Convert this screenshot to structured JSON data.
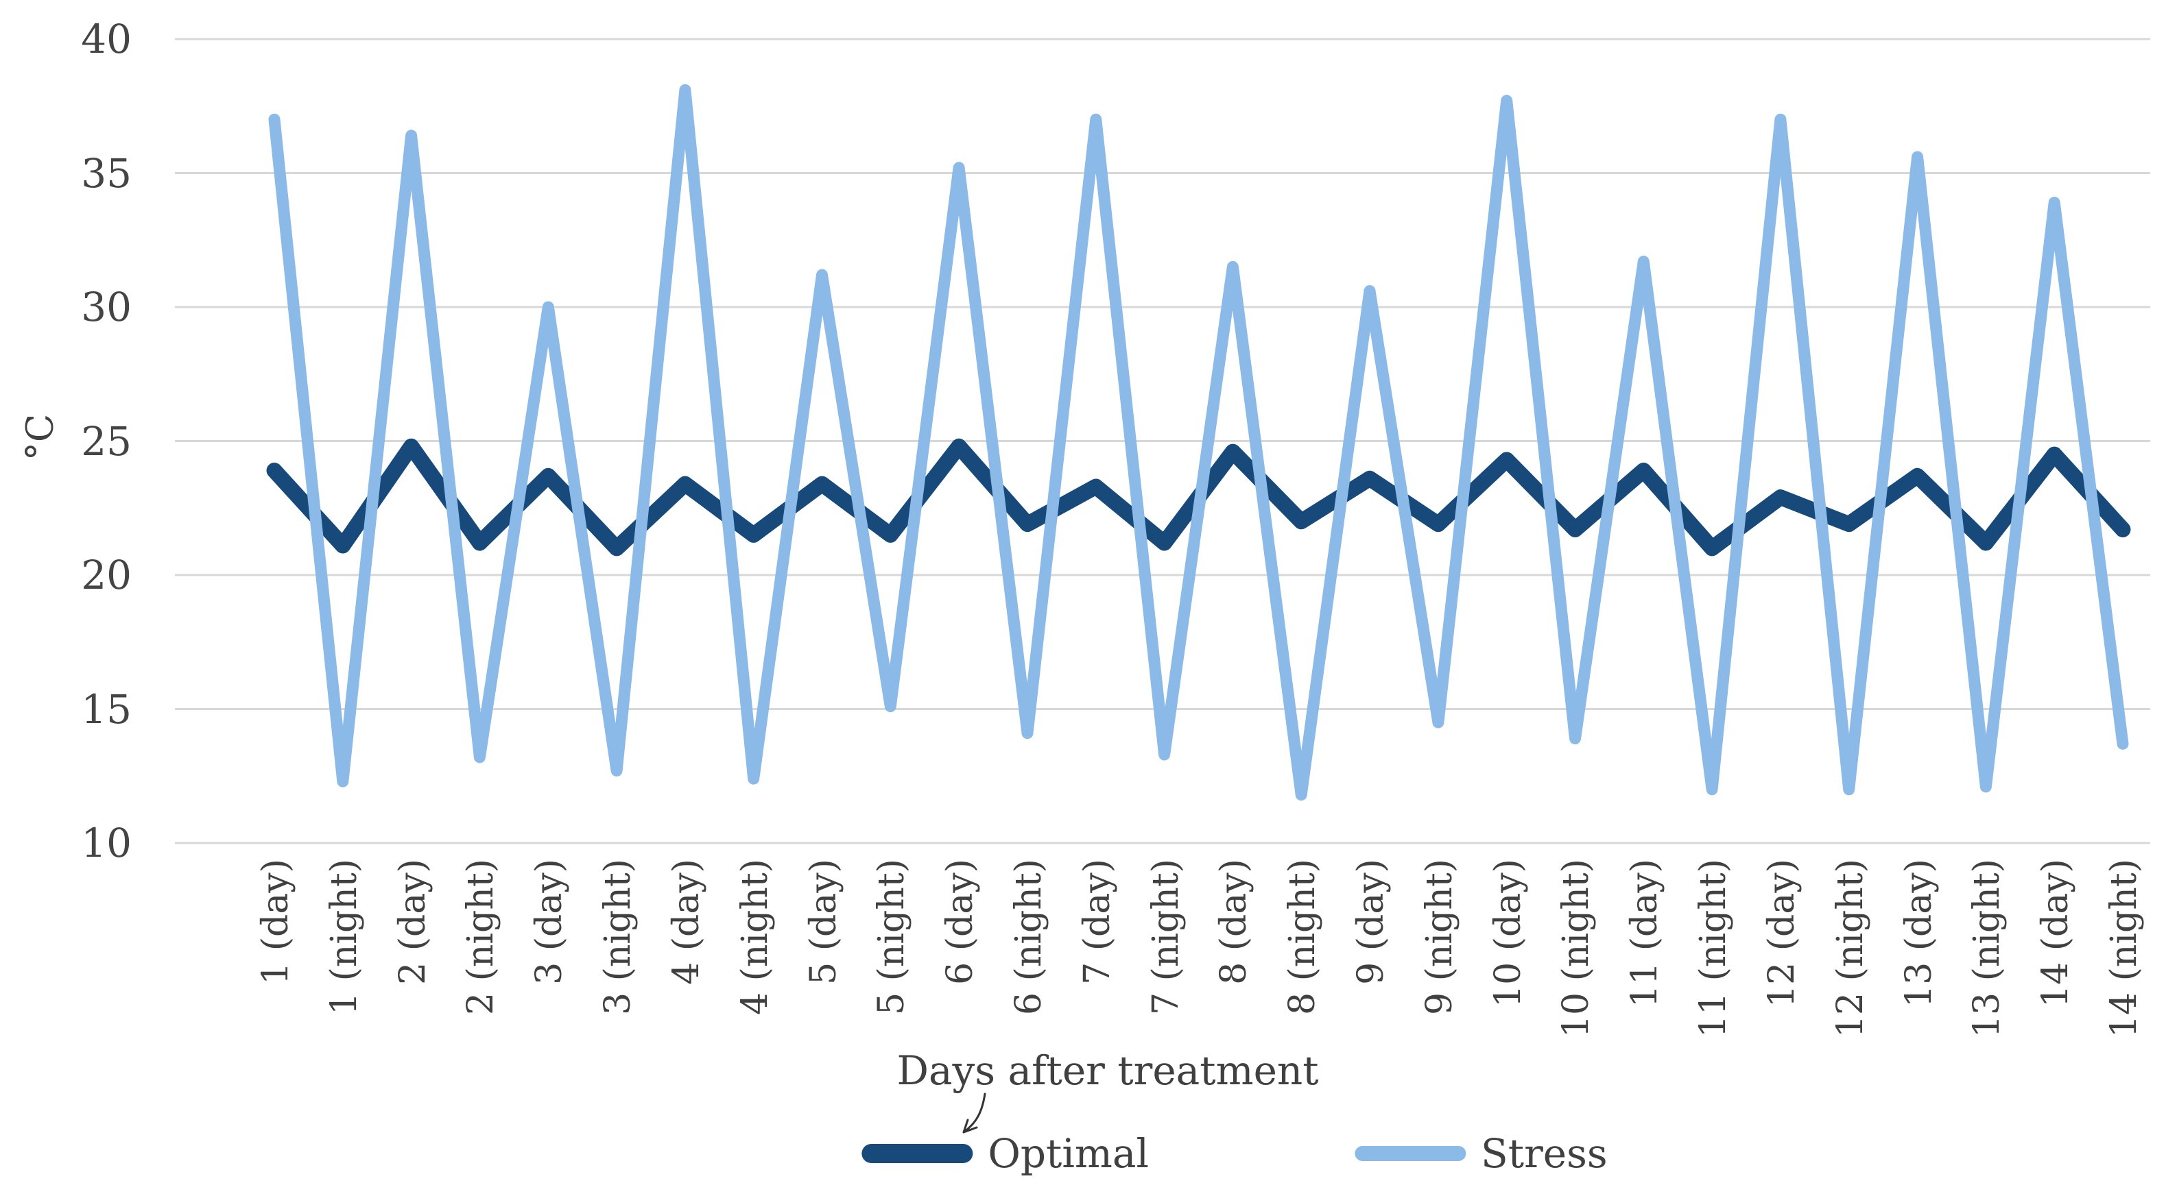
{
  "chart_data": {
    "type": "line",
    "title": "",
    "xlabel": "Days after treatment",
    "ylabel": "°C",
    "ylim": [
      10,
      40
    ],
    "yticks": [
      40,
      35,
      30,
      25,
      20,
      15,
      10
    ],
    "grid": true,
    "gridline_color": "#d8d8d8",
    "legend_position": "bottom",
    "background_color": "#ffffff",
    "text_color": "#404040",
    "categories": [
      "1 (day)",
      "1 (night)",
      "2 (day)",
      "2 (night)",
      "3 (day)",
      "3 (night)",
      "4 (day)",
      "4 (night)",
      "5 (day)",
      "5 (night)",
      "6 (day)",
      "6 (night)",
      "7 (day)",
      "7 (night)",
      "8 (day)",
      "8 (night)",
      "9 (day)",
      "9 (night)",
      "10 (day)",
      "10 (night)",
      "11 (day)",
      "11 (night)",
      "12 (day)",
      "12 (night)",
      "13 (day)",
      "13 (night)",
      "14 (day)",
      "14 (night)"
    ],
    "series": [
      {
        "name": "Optimal",
        "color": "#17497b",
        "stroke_width": 23,
        "values": [
          23.9,
          21.1,
          24.8,
          21.2,
          23.7,
          21.0,
          23.4,
          21.5,
          23.4,
          21.5,
          24.8,
          21.9,
          23.3,
          21.2,
          24.6,
          22.0,
          23.6,
          21.9,
          24.3,
          21.7,
          23.9,
          21.0,
          22.9,
          21.9,
          23.7,
          21.2,
          24.5,
          21.7
        ]
      },
      {
        "name": "Stress",
        "color": "#8cbae8",
        "stroke_width": 17,
        "values": [
          37.0,
          12.3,
          36.4,
          13.2,
          30.0,
          12.7,
          38.1,
          12.4,
          31.2,
          15.1,
          35.2,
          14.1,
          37.0,
          13.3,
          31.5,
          11.8,
          30.6,
          14.5,
          37.7,
          13.9,
          31.7,
          12.0,
          37.0,
          12.0,
          35.6,
          12.1,
          33.9,
          13.7
        ]
      }
    ]
  }
}
